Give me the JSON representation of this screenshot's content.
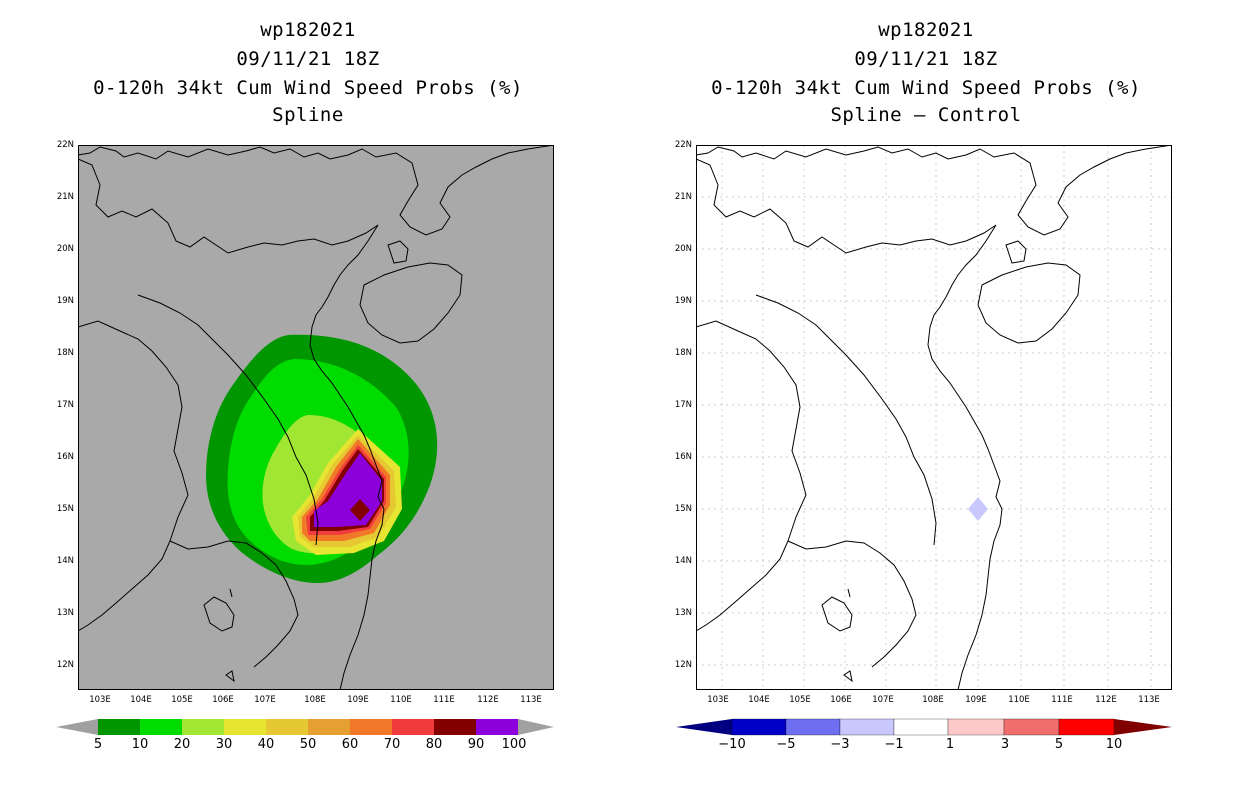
{
  "left_panel": {
    "title_line1": "wp182021",
    "title_line2": "09/11/21 18Z",
    "title_line3": "0-120h 34kt Cum Wind Speed Probs (%)",
    "title_line4": "Spline",
    "colorbar_labels": [
      "5",
      "10",
      "20",
      "30",
      "40",
      "50",
      "60",
      "70",
      "80",
      "90",
      "100"
    ],
    "colorbar_colors": [
      "#009600",
      "#00dc00",
      "#a0e632",
      "#e6e632",
      "#e6c832",
      "#e6a032",
      "#f07828",
      "#f03c3c",
      "#820000",
      "#8c00dc"
    ]
  },
  "right_panel": {
    "title_line1": "wp182021",
    "title_line2": "09/11/21 18Z",
    "title_line3": "0-120h 34kt Cum Wind Speed Probs (%)",
    "title_line4": "Spline – Control",
    "colorbar_labels": [
      "−10",
      "−5",
      "−3",
      "−1",
      "1",
      "3",
      "5",
      "10"
    ],
    "colorbar_colors": [
      "#0000c8",
      "#6e6ef0",
      "#c8c8ff",
      "#ffffff",
      "#ffc8c8",
      "#f06e6e",
      "#ff0000"
    ],
    "colorbar_end_low": "#000080",
    "colorbar_end_high": "#800000"
  },
  "axes": {
    "lat_labels": [
      "22N",
      "21N",
      "20N",
      "19N",
      "18N",
      "17N",
      "16N",
      "15N",
      "14N",
      "13N",
      "12N"
    ],
    "lon_labels": [
      "103E",
      "104E",
      "105E",
      "106E",
      "107E",
      "108E",
      "109E",
      "110E",
      "111E",
      "112E",
      "113E"
    ]
  },
  "colors": {
    "map_background_left": "#a9a9a9",
    "map_background_right": "#ffffff",
    "gridline": "#c0c0c0"
  }
}
